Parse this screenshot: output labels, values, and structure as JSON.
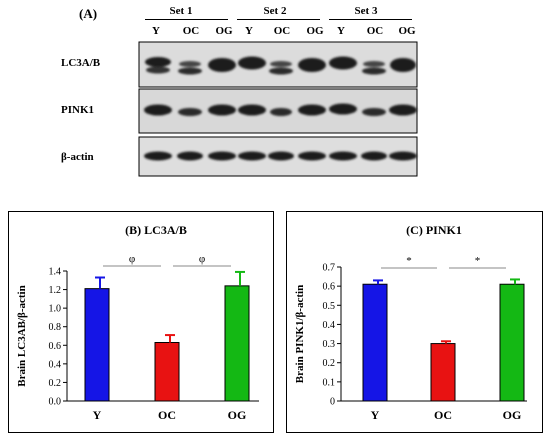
{
  "panel_a": {
    "label": "(A)",
    "sets": [
      "Set 1",
      "Set 2",
      "Set 3"
    ],
    "lanes": [
      "Y",
      "OC",
      "OG",
      "Y",
      "OC",
      "OG",
      "Y",
      "OC",
      "OG"
    ],
    "rows": [
      "LC3A/B",
      "PINK1",
      "β-actin"
    ]
  },
  "chart_data": [
    {
      "type": "bar",
      "title": "(B) LC3A/B",
      "ylabel": "Brain LC3AB/β-actin",
      "categories": [
        "Y",
        "OC",
        "OG"
      ],
      "values": [
        1.21,
        0.63,
        1.24
      ],
      "errors": [
        0.12,
        0.08,
        0.15
      ],
      "colors": [
        "#1515e6",
        "#e81212",
        "#14b814"
      ],
      "ylim": [
        0,
        1.4
      ],
      "yticks": [
        "0.0",
        "0.2",
        "0.4",
        "0.6",
        "0.8",
        "1.0",
        "1.2",
        "1.4"
      ],
      "significance": [
        {
          "from": 0,
          "to": 1,
          "symbol": "φ"
        },
        {
          "from": 1,
          "to": 2,
          "symbol": "φ"
        }
      ]
    },
    {
      "type": "bar",
      "title": "(C) PINK1",
      "ylabel": "Brain PINK1/β-actin",
      "categories": [
        "Y",
        "OC",
        "OG"
      ],
      "values": [
        0.61,
        0.3,
        0.61
      ],
      "errors": [
        0.02,
        0.012,
        0.025
      ],
      "colors": [
        "#1515e6",
        "#e81212",
        "#14b814"
      ],
      "ylim": [
        0,
        0.7
      ],
      "yticks": [
        "0",
        "0.1",
        "0.2",
        "0.3",
        "0.4",
        "0.5",
        "0.6",
        "0.7"
      ],
      "significance": [
        {
          "from": 0,
          "to": 1,
          "symbol": "*"
        },
        {
          "from": 1,
          "to": 2,
          "symbol": "*"
        }
      ]
    }
  ]
}
